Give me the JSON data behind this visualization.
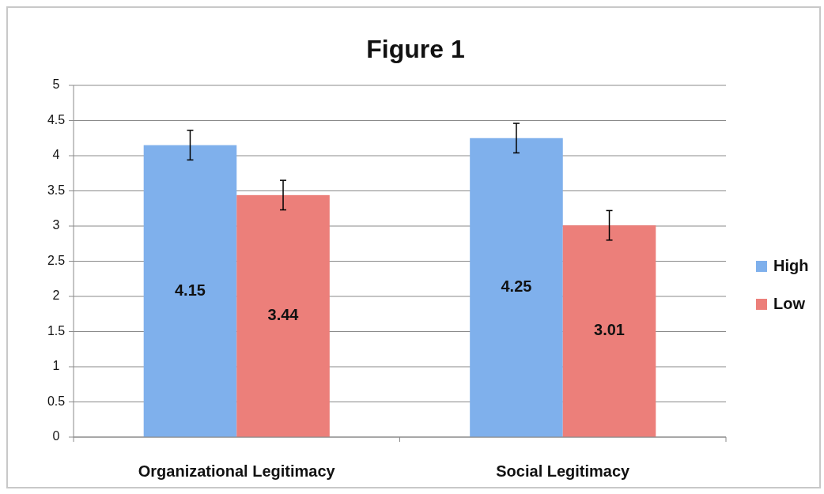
{
  "chart_data": {
    "type": "bar",
    "title": "Figure 1",
    "categories": [
      "Organizational Legitimacy",
      "Social Legitimacy"
    ],
    "series": [
      {
        "name": "High",
        "color": "#7fb0ec",
        "values": [
          4.15,
          4.25
        ],
        "errors": [
          0.21,
          0.21
        ]
      },
      {
        "name": "Low",
        "color": "#ec7f7a",
        "values": [
          3.44,
          3.01
        ],
        "errors": [
          0.21,
          0.21
        ]
      }
    ],
    "ylim": [
      0,
      5
    ],
    "yticks": [
      0,
      0.5,
      1,
      1.5,
      2,
      2.5,
      3,
      3.5,
      4,
      4.5,
      5
    ],
    "grid": "y",
    "legend": "right",
    "data_labels": true
  }
}
